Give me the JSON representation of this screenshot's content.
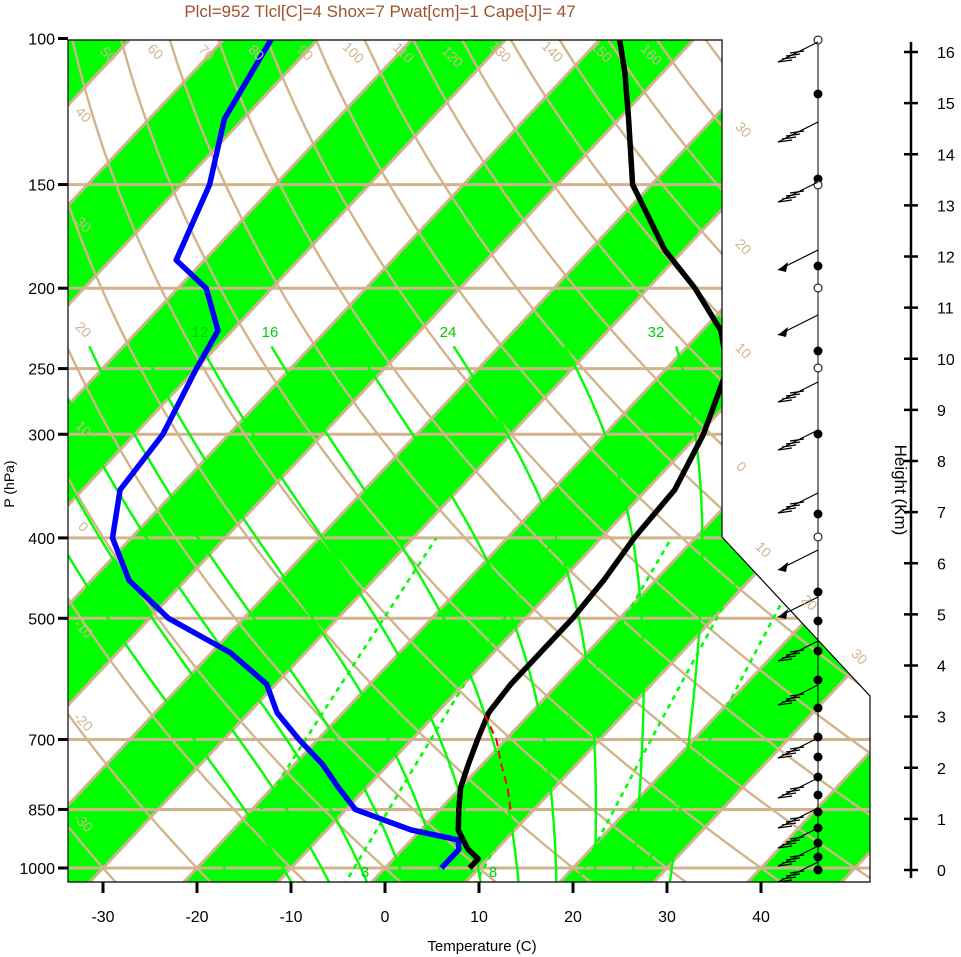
{
  "header": {
    "title": "Plcl=952 Tlcl[C]=4 Shox=7 Pwat[cm]=1 Cape[J]= 47",
    "title_color": "#a0522d"
  },
  "colors": {
    "band_fill": "#00ff00",
    "isobar_isotherm": "#d2b48c",
    "dry_adiabat": "#d2b48c",
    "moist_adiabat": "#00ff00",
    "mixing_ratio": "#00ff00",
    "temperature": "#000000",
    "dewpoint": "#0000ff",
    "parcel": "#ff0000",
    "label_tan": "#d2b48c",
    "label_green": "#00cc00"
  },
  "chart_data": {
    "type": "line",
    "subtype": "skew-T log-P sounding",
    "title": "Plcl=952 Tlcl[C]=4 Shox=7 Pwat[cm]=1 Cape[J]= 47",
    "xlabel": "Temperature (C)",
    "ylabel": "P (hPa)",
    "y2label": "Height (Km)",
    "xlim": [
      -33,
      52
    ],
    "ylim": [
      1050,
      100
    ],
    "yscale": "log",
    "x_ticks": [
      -30,
      -20,
      -10,
      0,
      10,
      20,
      30,
      40
    ],
    "y_ticks": [
      1000,
      850,
      700,
      500,
      400,
      300,
      250,
      200,
      150,
      100
    ],
    "height_ticks": [
      0,
      1,
      2,
      3,
      4,
      5,
      6,
      7,
      8,
      9,
      10,
      11,
      12,
      13,
      14,
      15,
      16
    ],
    "temperature_band_labels": [
      "50",
      "60",
      "70",
      "80",
      "90",
      "100",
      "110",
      "120",
      "130",
      "140",
      "150",
      "160",
      "40",
      "30",
      "20",
      "10",
      "0",
      "-10",
      "-20",
      "-30",
      "30",
      "20",
      "10",
      "0",
      "10",
      "20",
      "30"
    ],
    "mixing_ratio_labels": [
      "12",
      "16",
      "24",
      "32",
      "3",
      "8"
    ],
    "series": [
      {
        "name": "Temperature",
        "p": [
          1000,
          975,
          950,
          925,
          900,
          850,
          800,
          750,
          700,
          650,
          600,
          550,
          500,
          450,
          400,
          350,
          300,
          250,
          225,
          200,
          180,
          150,
          125,
          110,
          100
        ],
        "t": [
          9,
          9,
          7,
          5.5,
          4,
          2,
          0,
          -1.5,
          -3,
          -4.5,
          -5,
          -5,
          -5,
          -5.5,
          -6.5,
          -7,
          -9.5,
          -13.5,
          -18,
          -25,
          -32,
          -42,
          -49,
          -54,
          -58
        ]
      },
      {
        "name": "Dewpoint",
        "p": [
          1000,
          975,
          950,
          925,
          900,
          850,
          800,
          750,
          700,
          650,
          600,
          550,
          500,
          450,
          400,
          350,
          300,
          250,
          225,
          200,
          185,
          150,
          125,
          100
        ],
        "td": [
          6,
          6,
          6,
          5,
          -1,
          -9,
          -13,
          -17,
          -22,
          -27,
          -31,
          -38,
          -48,
          -56,
          -62,
          -66,
          -67,
          -70,
          -71.5,
          -77,
          -83,
          -87,
          -92,
          -95
        ]
      },
      {
        "name": "Parcel",
        "p": [
          850,
          800,
          750,
          700,
          650
        ],
        "t": [
          7.5,
          5,
          2,
          -1,
          -5
        ]
      }
    ],
    "wind_barbs": "profile at right margin, surface to 16 km"
  }
}
